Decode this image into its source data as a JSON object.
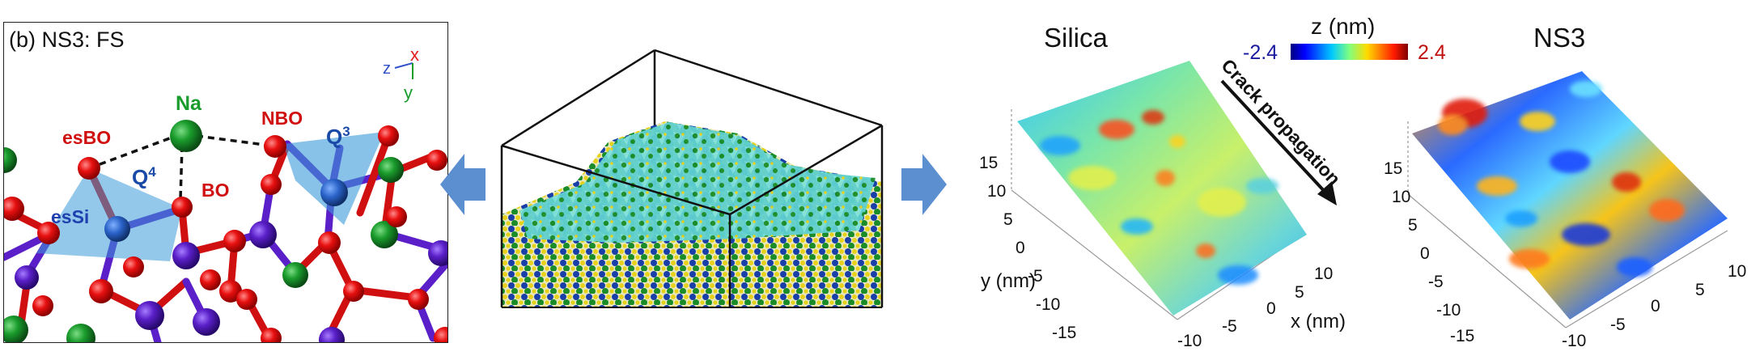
{
  "left_panel": {
    "title": "(b) NS3: FS",
    "axes": {
      "z": "z",
      "x": "x",
      "y": "y"
    },
    "atom_labels": {
      "na": "Na",
      "nbo": "NBO",
      "esbo": "esBO",
      "bo": "BO",
      "essi": "esSi",
      "q4_base": "Q",
      "q4_sup": "4",
      "q3_base": "Q",
      "q3_sup": "3"
    },
    "colors": {
      "oxygen": "#e00000",
      "silicon": "#5a1fc8",
      "sodium": "#1a8c2a",
      "tetrahedron": "#3a9ad9"
    }
  },
  "arrows": {
    "color": "#5b8fd0"
  },
  "right_panel": {
    "titles": {
      "silica": "Silica",
      "ns3": "NS3"
    },
    "colorbar": {
      "label": "z (nm)",
      "min": "-2.4",
      "max": "2.4"
    },
    "crack_label": "Crack propagation",
    "silica_axes": {
      "ylabel": "y (nm)",
      "xlabel": "x (nm)",
      "y_ticks": [
        "15",
        "10",
        "5",
        "0",
        "-5",
        "-10",
        "-15"
      ],
      "x_ticks": [
        "-10",
        "-5",
        "0",
        "5",
        "10"
      ]
    },
    "ns3_axes": {
      "y_ticks": [
        "15",
        "10",
        "5",
        "0",
        "-5",
        "-10",
        "-15"
      ],
      "x_ticks": [
        "-10",
        "-5",
        "0",
        "5",
        "10"
      ]
    }
  }
}
